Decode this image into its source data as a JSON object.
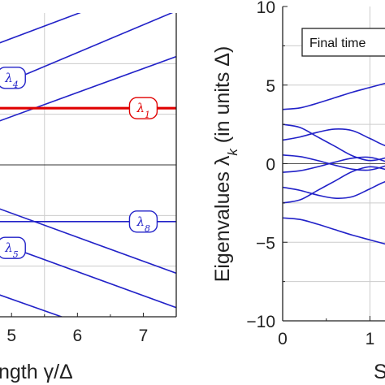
{
  "chart_data": [
    {
      "type": "line",
      "xlabel": "ngth γ/Δ",
      "xlim": [
        4.8,
        7.5
      ],
      "ylim": [
        -7.5,
        7.5
      ],
      "xticks": [
        "5",
        "6",
        "7"
      ],
      "grid": true,
      "colors": {
        "curves": "#2222c8",
        "highlight": "#e00000",
        "grid": "#cccccc"
      },
      "series": [
        {
          "name": "λ4",
          "color": "#2222c8",
          "x": [
            4.8,
            7.5
          ],
          "y": [
            3.9,
            7.6
          ]
        },
        {
          "color": "#2222c8",
          "x": [
            4.8,
            7.5
          ],
          "y": [
            2.15,
            5.35
          ]
        },
        {
          "color": "#2222c8",
          "x": [
            4.8,
            7.5
          ],
          "y": [
            6.0,
            9.3
          ]
        },
        {
          "name": "λ1",
          "color": "#e00000",
          "x": [
            4.8,
            7.5
          ],
          "y": [
            2.8,
            2.8
          ]
        },
        {
          "name": "λ8",
          "color": "#2222c8",
          "x": [
            4.8,
            7.5
          ],
          "y": [
            -2.8,
            -2.8
          ]
        },
        {
          "name": "λ5",
          "color": "#2222c8",
          "x": [
            4.8,
            7.5
          ],
          "y": [
            -2.15,
            -5.35
          ]
        },
        {
          "color": "#2222c8",
          "x": [
            4.8,
            7.5
          ],
          "y": [
            -3.85,
            -7.05
          ]
        },
        {
          "color": "#2222c8",
          "x": [
            4.8,
            7.5
          ],
          "y": [
            -6.4,
            -9.5
          ]
        }
      ],
      "line_labels": [
        {
          "text": "λ4",
          "x": 5.0,
          "y": 4.3,
          "color": "#2222c8"
        },
        {
          "text": "λ1",
          "x": 7.0,
          "y": 2.8,
          "color": "#e00000"
        },
        {
          "text": "λ8",
          "x": 7.0,
          "y": -2.8,
          "color": "#2222c8"
        },
        {
          "text": "λ5",
          "x": 5.0,
          "y": -4.1,
          "color": "#2222c8"
        }
      ]
    },
    {
      "type": "line",
      "ylabel": "Eigenvalues λk (in units Δ)",
      "xlabel": "S",
      "xlim": [
        0,
        1.6
      ],
      "ylim": [
        -10,
        10
      ],
      "yticks": [
        "−10",
        "−5",
        "0",
        "5",
        "10"
      ],
      "xticks": [
        "0",
        "1"
      ],
      "grid": true,
      "legend_text": "Final time",
      "colors": {
        "curves": "#2222c8",
        "grid": "#cccccc"
      },
      "series": [
        {
          "color": "#2222c8",
          "x": [
            0,
            0.2,
            0.4,
            0.6,
            0.8,
            1.0,
            1.2,
            1.4,
            1.6
          ],
          "y": [
            3.45,
            3.55,
            3.85,
            4.2,
            4.55,
            4.85,
            5.15,
            5.45,
            5.75
          ]
        },
        {
          "color": "#2222c8",
          "x": [
            0,
            0.2,
            0.4,
            0.6,
            0.8,
            1.0,
            1.2,
            1.4,
            1.6
          ],
          "y": [
            2.5,
            2.3,
            1.7,
            1.1,
            0.5,
            0.2,
            0.4,
            0.8,
            1.1
          ]
        },
        {
          "color": "#2222c8",
          "x": [
            0,
            0.2,
            0.4,
            0.6,
            0.8,
            1.0,
            1.2,
            1.4,
            1.6
          ],
          "y": [
            1.5,
            1.7,
            2.0,
            2.2,
            2.1,
            1.6,
            1.1,
            1.0,
            1.2
          ]
        },
        {
          "color": "#2222c8",
          "x": [
            0,
            0.2,
            0.4,
            0.6,
            0.8,
            1.0,
            1.2,
            1.4,
            1.6
          ],
          "y": [
            0.55,
            0.45,
            0.2,
            -0.1,
            -0.35,
            -0.4,
            -0.1,
            0.35,
            0.7
          ]
        },
        {
          "color": "#2222c8",
          "x": [
            0,
            0.2,
            0.4,
            0.6,
            0.8,
            1.0,
            1.2,
            1.4,
            1.6
          ],
          "y": [
            -0.55,
            -0.45,
            -0.2,
            0.1,
            0.35,
            0.4,
            0.1,
            -0.35,
            -0.7
          ]
        },
        {
          "color": "#2222c8",
          "x": [
            0,
            0.2,
            0.4,
            0.6,
            0.8,
            1.0,
            1.2,
            1.4,
            1.6
          ],
          "y": [
            -1.5,
            -1.7,
            -2.0,
            -2.2,
            -2.1,
            -1.6,
            -1.1,
            -1.0,
            -1.2
          ]
        },
        {
          "color": "#2222c8",
          "x": [
            0,
            0.2,
            0.4,
            0.6,
            0.8,
            1.0,
            1.2,
            1.4,
            1.6
          ],
          "y": [
            -2.5,
            -2.3,
            -1.7,
            -1.1,
            -0.5,
            -0.2,
            -0.4,
            -0.8,
            -1.1
          ]
        },
        {
          "color": "#2222c8",
          "x": [
            0,
            0.2,
            0.4,
            0.6,
            0.8,
            1.0,
            1.2,
            1.4,
            1.6
          ],
          "y": [
            -3.45,
            -3.55,
            -3.85,
            -4.2,
            -4.55,
            -4.85,
            -5.15,
            -5.45,
            -5.75
          ]
        }
      ]
    }
  ]
}
